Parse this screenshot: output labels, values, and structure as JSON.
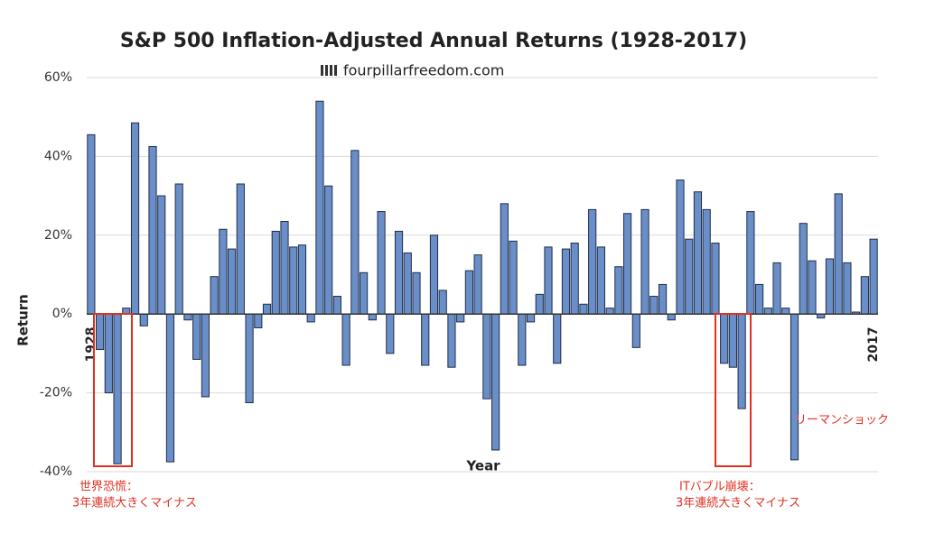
{
  "chart_data": {
    "type": "bar",
    "title": "S&P 500 Inflation-Adjusted Annual Returns (1928-2017)",
    "subtitle": "fourpillarfreedom.com",
    "x_label": "Year",
    "y_label": "Return",
    "color": "#6a8fc8",
    "categories": [
      "1928",
      null,
      null,
      null,
      null,
      null,
      null,
      null,
      null,
      null,
      null,
      null,
      null,
      null,
      null,
      null,
      null,
      null,
      null,
      null,
      null,
      null,
      null,
      null,
      null,
      null,
      null,
      null,
      null,
      null,
      null,
      null,
      null,
      null,
      null,
      null,
      null,
      null,
      null,
      null,
      null,
      null,
      null,
      null,
      null,
      null,
      null,
      null,
      null,
      null,
      null,
      null,
      null,
      null,
      null,
      null,
      null,
      null,
      null,
      null,
      null,
      null,
      null,
      null,
      null,
      null,
      null,
      null,
      null,
      null,
      null,
      null,
      null,
      null,
      null,
      null,
      null,
      null,
      null,
      null,
      null,
      null,
      null,
      null,
      null,
      null,
      null,
      null,
      null,
      "2017"
    ],
    "values": [
      45.5,
      -9,
      -20,
      -38,
      1.5,
      48.5,
      -3,
      42.5,
      30,
      -37.5,
      33,
      -1.5,
      -11.5,
      -21,
      9.5,
      21.5,
      16.5,
      33,
      -22.5,
      -3.5,
      2.5,
      21,
      23.5,
      17,
      17.5,
      -2,
      54,
      32.5,
      4.5,
      -13,
      41.5,
      10.5,
      -1.5,
      26,
      -10,
      21,
      15.5,
      10.5,
      -13,
      20,
      6,
      -13.5,
      -2,
      11,
      15,
      -21.5,
      -34.5,
      28,
      18.5,
      -13,
      -2,
      5,
      17,
      -12.5,
      16.5,
      18,
      2.5,
      26.5,
      17,
      1.5,
      12,
      25.5,
      -8.5,
      26.5,
      4.5,
      7.5,
      -1.5,
      34,
      19,
      31,
      26.5,
      18,
      -12.5,
      -13.5,
      -24,
      26,
      7.5,
      1.5,
      13,
      1.5,
      -37,
      23,
      13.5,
      -1,
      14,
      30.5,
      13,
      0.5,
      9.5,
      19
    ],
    "ylim": [
      -40,
      60
    ],
    "yticks": [
      {
        "value": -40,
        "label": "-40%"
      },
      {
        "value": -20,
        "label": "-20%"
      },
      {
        "value": 0,
        "label": "0%"
      },
      {
        "value": 20,
        "label": "20%"
      },
      {
        "value": 40,
        "label": "40%"
      },
      {
        "value": 60,
        "label": "60%"
      }
    ],
    "grid": true,
    "annotations": [
      "世界恐慌：",
      "3年連続大きくマイナス",
      "ITバブル崩壊：",
      "3年連続大きくマイナス",
      "リーマンショック"
    ]
  }
}
